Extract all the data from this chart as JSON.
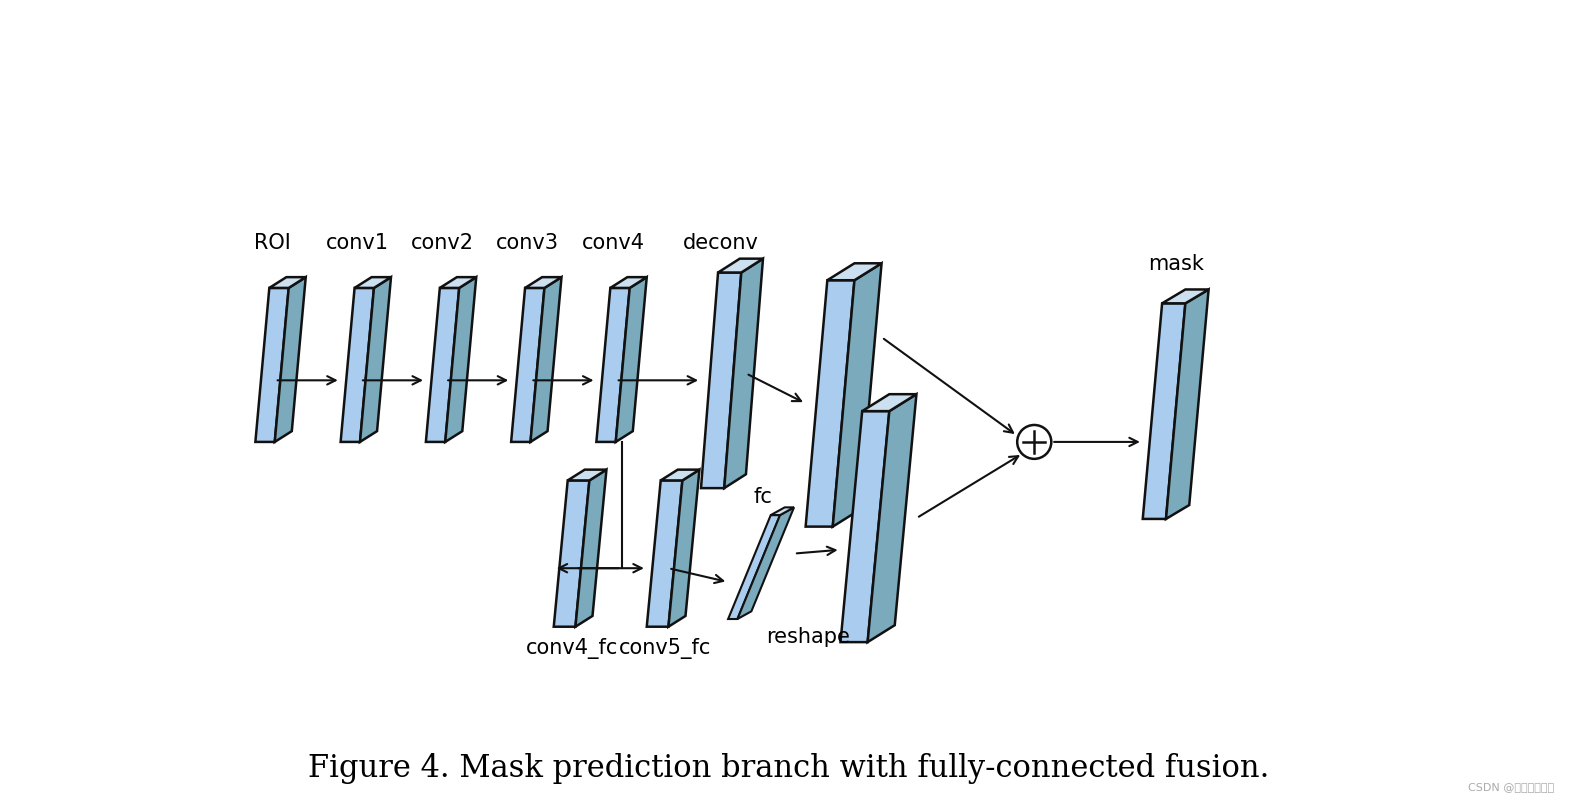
{
  "title": "Figure 4. Mask prediction branch with fully-connected fusion.",
  "bg_color": "#ffffff",
  "face_color": "#aaccee",
  "edge_color": "#111111",
  "side_color": "#7aaabb",
  "top_color": "#cce0f0",
  "labels_top": [
    "ROI",
    "conv1",
    "conv2",
    "conv3",
    "conv4",
    "deconv"
  ],
  "labels_bottom": [
    "conv4_fc",
    "conv5_fc"
  ],
  "label_fc": "fc",
  "label_reshape": "reshape",
  "label_mask": "mask",
  "figsize": [
    15.78,
    8.08
  ],
  "dpi": 100
}
